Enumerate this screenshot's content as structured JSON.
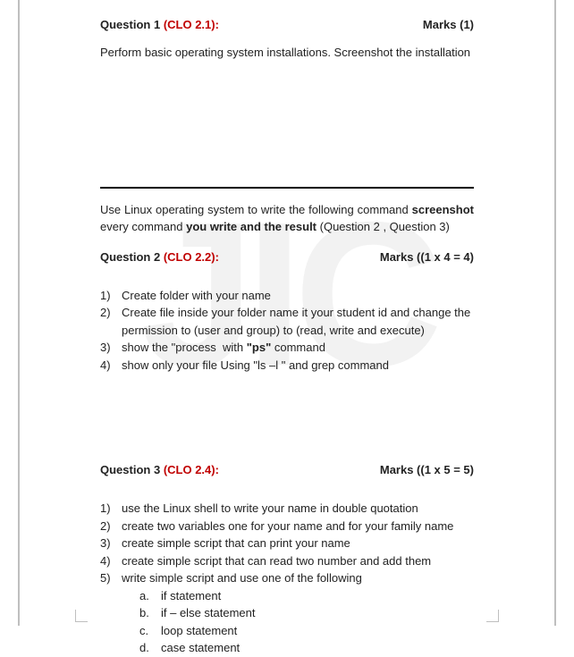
{
  "watermark": "JIC",
  "q1": {
    "label": "Question 1",
    "clo": "(CLO 2.1):",
    "marks": "Marks (1)",
    "text": "Perform basic operating system installations. Screenshot the installation"
  },
  "intro": {
    "pre": "Use Linux operating system to write the following command ",
    "bold1": "screenshot",
    "mid": " every command ",
    "bold2": "you write and the result",
    "paren": " (Question 2 , Question 3)"
  },
  "q2": {
    "label": "Question 2",
    "clo": "(CLO 2.2):",
    "marks": "Marks ((1 x 4 = 4)",
    "items": [
      "Create folder with your name",
      "Create file inside your folder name it your student id and change the permission to (user and group) to (read, write and execute)",
      "show the \"process  with \"ps\" command",
      "show only your file Using \"ls –l \" and grep command"
    ]
  },
  "q3": {
    "label": "Question 3",
    "clo": "(CLO 2.4):",
    "marks": "Marks ((1 x 5 = 5)",
    "items": [
      "use the Linux shell to write your name in double quotation",
      "create two variables one for your name and for your family name",
      "create simple script that can print your name",
      "create simple script that can read two number and add them",
      "write simple script and use one of the following"
    ],
    "subitems": [
      "if statement",
      "if – else statement",
      "loop statement",
      "case statement"
    ]
  }
}
